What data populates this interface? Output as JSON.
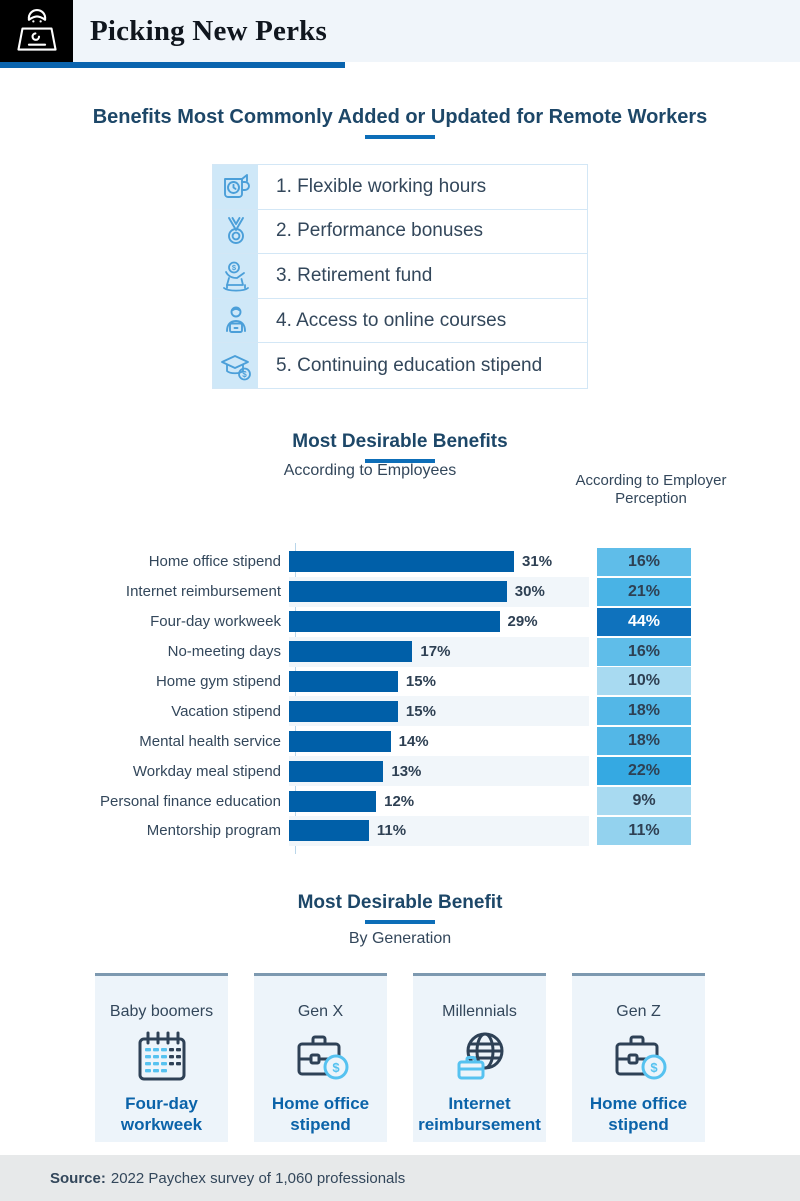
{
  "header": {
    "title": "Picking New Perks",
    "logo_icon": "person-at-laptop-icon"
  },
  "benefits_added": {
    "heading": "Benefits Most Commonly Added or Updated for Remote Workers",
    "items": [
      {
        "label": "1. Flexible working hours",
        "icon": "mug-clock-icon"
      },
      {
        "label": "2. Performance bonuses",
        "icon": "medal-icon"
      },
      {
        "label": "3. Retirement fund",
        "icon": "rocking-chair-dollar-icon"
      },
      {
        "label": "4. Access to online courses",
        "icon": "person-laptop-icon"
      },
      {
        "label": "5. Continuing education stipend",
        "icon": "graduation-cap-dollar-icon"
      }
    ]
  },
  "chart": {
    "heading": "Most Desirable Benefits",
    "employees_header": "According to Employees",
    "employer_header": "According to Employer Perception",
    "rows": [
      {
        "label": "Home office stipend",
        "employee": 31,
        "employee_label": "31%",
        "employer": 16,
        "employer_label": "16%",
        "employer_color": "#5fbde9",
        "employer_text_color": "#2e4053"
      },
      {
        "label": "Internet reimbursement",
        "employee": 30,
        "employee_label": "30%",
        "employer": 21,
        "employer_label": "21%",
        "employer_color": "#49b3e5",
        "employer_text_color": "#2e4053"
      },
      {
        "label": "Four-day workweek",
        "employee": 29,
        "employee_label": "29%",
        "employer": 44,
        "employer_label": "44%",
        "employer_color": "#0f72bd",
        "employer_text_color": "#ffffff"
      },
      {
        "label": "No-meeting days",
        "employee": 17,
        "employee_label": "17%",
        "employer": 16,
        "employer_label": "16%",
        "employer_color": "#5fbde9",
        "employer_text_color": "#2e4053"
      },
      {
        "label": "Home gym stipend",
        "employee": 15,
        "employee_label": "15%",
        "employer": 10,
        "employer_label": "10%",
        "employer_color": "#a8daf1",
        "employer_text_color": "#2e4053"
      },
      {
        "label": "Vacation stipend",
        "employee": 15,
        "employee_label": "15%",
        "employer": 18,
        "employer_label": "18%",
        "employer_color": "#53b7e7",
        "employer_text_color": "#2e4053"
      },
      {
        "label": "Mental health service",
        "employee": 14,
        "employee_label": "14%",
        "employer": 18,
        "employer_label": "18%",
        "employer_color": "#53b7e7",
        "employer_text_color": "#2e4053"
      },
      {
        "label": "Workday meal stipend",
        "employee": 13,
        "employee_label": "13%",
        "employer": 22,
        "employer_label": "22%",
        "employer_color": "#35a9e2",
        "employer_text_color": "#2e4053"
      },
      {
        "label": "Personal finance education",
        "employee": 12,
        "employee_label": "12%",
        "employer": 9,
        "employer_label": "9%",
        "employer_color": "#a8daf1",
        "employer_text_color": "#2e4053"
      },
      {
        "label": "Mentorship program",
        "employee": 11,
        "employee_label": "11%",
        "employer": 11,
        "employer_label": "11%",
        "employer_color": "#93d2ee",
        "employer_text_color": "#2e4053"
      }
    ]
  },
  "chart_data": {
    "type": "bar",
    "orientation": "horizontal",
    "title": "Most Desirable Benefits",
    "categories": [
      "Home office stipend",
      "Internet reimbursement",
      "Four-day workweek",
      "No-meeting days",
      "Home gym stipend",
      "Vacation stipend",
      "Mental health service",
      "Workday meal stipend",
      "Personal finance education",
      "Mentorship program"
    ],
    "series": [
      {
        "name": "According to Employees",
        "values": [
          31,
          30,
          29,
          17,
          15,
          15,
          14,
          13,
          12,
          11
        ]
      },
      {
        "name": "According to Employer Perception",
        "values": [
          16,
          21,
          44,
          16,
          10,
          18,
          18,
          22,
          9,
          11
        ]
      }
    ],
    "value_unit": "%",
    "xlim": [
      0,
      44
    ],
    "grid": false,
    "legend_position": "column-headers",
    "bar_color": "#005fa8",
    "highlight_color": "#0f72bd"
  },
  "generations": {
    "heading": "Most Desirable Benefit",
    "subtitle": "By Generation",
    "cards": [
      {
        "generation": "Baby boomers",
        "benefit": "Four-day workweek",
        "icon": "calendar-icon"
      },
      {
        "generation": "Gen X",
        "benefit": "Home office stipend",
        "icon": "briefcase-dollar-icon"
      },
      {
        "generation": "Millennials",
        "benefit": "Internet reimbursement",
        "icon": "globe-briefcase-icon"
      },
      {
        "generation": "Gen Z",
        "benefit": "Home office stipend",
        "icon": "briefcase-dollar-icon"
      }
    ]
  },
  "footer": {
    "source_label": "Source:",
    "source_text": "2022 Paychex survey of 1,060 professionals"
  },
  "colors": {
    "accent_blue": "#0d6eb8",
    "bar_blue": "#005fa8",
    "navy_text": "#33475b",
    "heading_navy": "#1d4768",
    "light_icon_blue": "#56c2f0",
    "list_icon_blue": "#4b9fd9"
  }
}
